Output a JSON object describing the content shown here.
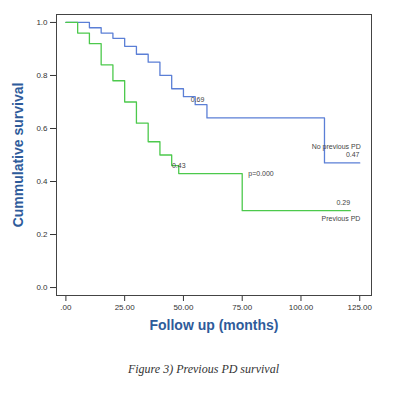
{
  "chart_data": {
    "type": "line",
    "caption": "Figure 3) Previous PD survival",
    "x_label": "Follow up (months)",
    "y_label": "Cummulative survival",
    "xlim": [
      -4,
      130
    ],
    "ylim": [
      -0.03,
      1.03
    ],
    "xticks": [
      {
        "value": 0,
        "label": ".00"
      },
      {
        "value": 25,
        "label": "25.00"
      },
      {
        "value": 50,
        "label": "50.00"
      },
      {
        "value": 75,
        "label": "75.00"
      },
      {
        "value": 100,
        "label": "100.00"
      },
      {
        "value": 125,
        "label": "125.00"
      }
    ],
    "yticks": [
      {
        "value": 0,
        "label": "0.0"
      },
      0.2,
      0.4,
      0.6,
      0.8,
      {
        "value": 1,
        "label": "1.0"
      }
    ],
    "line_style": "step",
    "series": [
      {
        "name": "No previous PD",
        "color": "#5b7fd6",
        "x": [
          0,
          3,
          10,
          15,
          20,
          25,
          30,
          35,
          40,
          45,
          50,
          55,
          60,
          110,
          125
        ],
        "values": [
          1.0,
          1.0,
          0.98,
          0.96,
          0.94,
          0.91,
          0.88,
          0.85,
          0.8,
          0.75,
          0.72,
          0.69,
          0.64,
          0.47,
          0.47
        ]
      },
      {
        "name": "Previous PD",
        "color": "#4cc94c",
        "x": [
          0,
          2,
          5,
          10,
          15,
          20,
          25,
          30,
          35,
          40,
          45,
          48,
          75,
          121
        ],
        "values": [
          1.0,
          1.0,
          0.96,
          0.92,
          0.84,
          0.78,
          0.7,
          0.62,
          0.55,
          0.5,
          0.46,
          0.43,
          0.29,
          0.29
        ]
      }
    ],
    "annotations": [
      {
        "text": "0.69",
        "x": 56,
        "y": 0.71
      },
      {
        "text": "0.43",
        "x": 48,
        "y": 0.46
      },
      {
        "text": "p=0.000",
        "x": 83,
        "y": 0.43
      },
      {
        "text": "No previous PD",
        "x": 115,
        "y": 0.53
      },
      {
        "text": "0.47",
        "x": 122,
        "y": 0.5
      },
      {
        "text": "0.29",
        "x": 118,
        "y": 0.32
      },
      {
        "text": "Previous PD",
        "x": 117,
        "y": 0.26
      }
    ]
  }
}
